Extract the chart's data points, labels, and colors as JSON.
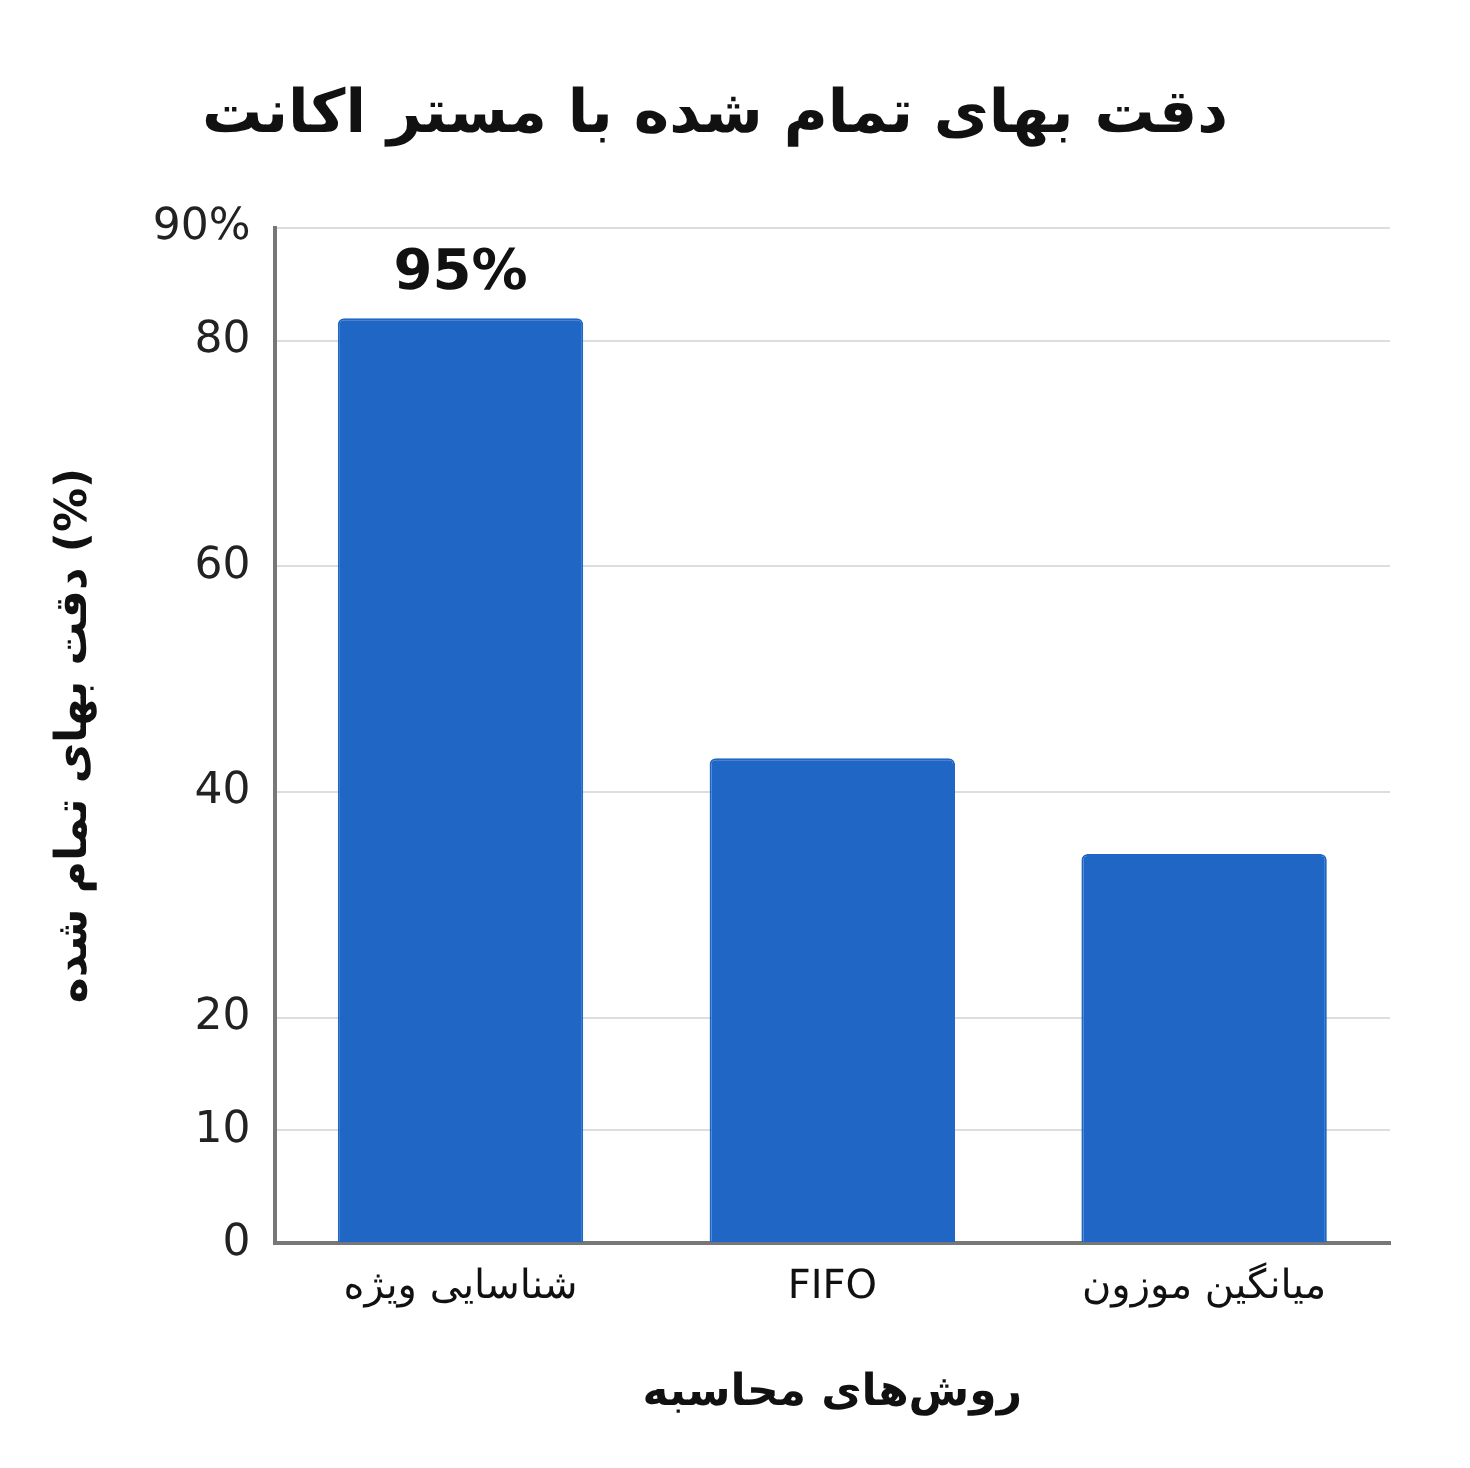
{
  "chart_data": {
    "type": "bar",
    "title": "دقت بهای تمام شده با مستر اکانت",
    "xlabel": "روش‌های محاسبه",
    "ylabel": "دقت بهای تمام شده (%)",
    "categories": [
      "شناسایی ویژه",
      "FIFO",
      "میانگین موزون"
    ],
    "values": [
      82,
      43,
      34.5
    ],
    "annotations": [
      {
        "text": "95%",
        "x": "شناسایی ویژه",
        "y": 82
      }
    ],
    "color": "#1f66c5",
    "ylim": [
      0,
      90
    ],
    "yticks": [
      0,
      10,
      20,
      40,
      60,
      80,
      {
        "value": 90,
        "label": "90%"
      }
    ],
    "grid": "y",
    "legend": false
  }
}
